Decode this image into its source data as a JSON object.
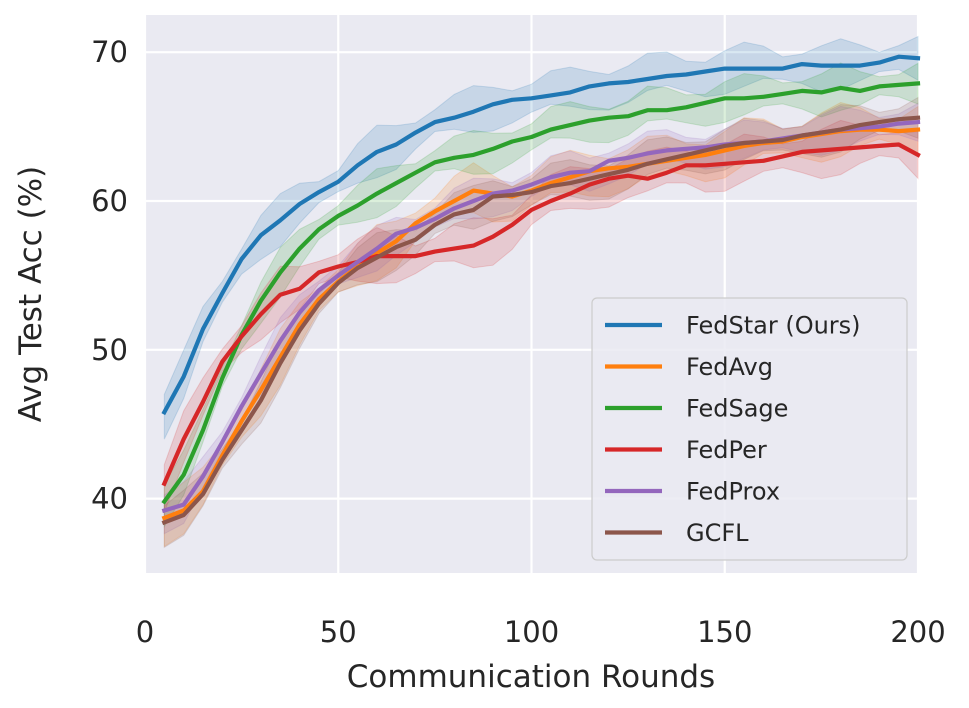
{
  "chart_data": {
    "type": "line",
    "title": "",
    "xlabel": "Communication Rounds",
    "ylabel": "Avg Test Acc (%)",
    "xlim": [
      0,
      200
    ],
    "ylim": [
      35,
      72.5
    ],
    "xticks": [
      0,
      50,
      100,
      150,
      200
    ],
    "yticks": [
      40,
      50,
      60,
      70
    ],
    "xtick_labels": [
      "0",
      "50",
      "100",
      "150",
      "200"
    ],
    "ytick_labels": [
      "40",
      "50",
      "60",
      "70"
    ],
    "grid": true,
    "legend_position": "lower-right",
    "x": [
      5,
      10,
      15,
      20,
      25,
      30,
      35,
      40,
      45,
      50,
      55,
      60,
      65,
      70,
      75,
      80,
      85,
      90,
      95,
      100,
      105,
      110,
      115,
      120,
      125,
      130,
      135,
      140,
      145,
      150,
      155,
      160,
      165,
      170,
      175,
      180,
      185,
      190,
      195,
      200
    ],
    "series": [
      {
        "name": "FedStar (Ours)",
        "color": "#1f77b4",
        "band": 1.5,
        "values": [
          45.8,
          48.2,
          51.4,
          53.8,
          56.1,
          57.7,
          58.7,
          59.8,
          60.6,
          61.3,
          62.4,
          63.3,
          63.8,
          64.6,
          65.3,
          65.6,
          66.0,
          66.5,
          66.8,
          66.9,
          67.1,
          67.3,
          67.7,
          67.9,
          68.0,
          68.2,
          68.4,
          68.5,
          68.7,
          68.9,
          68.9,
          68.9,
          68.9,
          69.2,
          69.1,
          69.1,
          69.1,
          69.3,
          69.7,
          69.6
        ]
      },
      {
        "name": "FedAvg",
        "color": "#ff7f0e",
        "band": 1.6,
        "values": [
          38.7,
          39.2,
          40.5,
          42.9,
          45.2,
          47.3,
          49.5,
          51.7,
          53.4,
          54.6,
          55.6,
          56.5,
          57.3,
          58.5,
          59.3,
          60.0,
          60.7,
          60.5,
          60.3,
          60.7,
          61.2,
          61.6,
          62.0,
          62.2,
          62.3,
          62.5,
          62.7,
          62.9,
          63.1,
          63.4,
          63.7,
          63.9,
          64.0,
          64.3,
          64.5,
          64.7,
          64.8,
          64.8,
          64.7,
          64.8
        ]
      },
      {
        "name": "FedSage",
        "color": "#2ca02c",
        "band": 1.4,
        "values": [
          39.8,
          41.6,
          44.6,
          48.1,
          51.0,
          53.3,
          55.2,
          56.8,
          58.1,
          59.0,
          59.7,
          60.5,
          61.2,
          61.9,
          62.6,
          62.9,
          63.1,
          63.5,
          64.0,
          64.3,
          64.8,
          65.1,
          65.4,
          65.6,
          65.7,
          66.1,
          66.1,
          66.3,
          66.6,
          66.9,
          66.9,
          67.0,
          67.2,
          67.4,
          67.3,
          67.6,
          67.4,
          67.7,
          67.8,
          67.9
        ]
      },
      {
        "name": "FedPer",
        "color": "#d62728",
        "band": 1.6,
        "values": [
          41.0,
          44.0,
          46.5,
          49.2,
          50.9,
          52.4,
          53.7,
          54.1,
          55.2,
          55.6,
          55.9,
          56.3,
          56.3,
          56.3,
          56.6,
          56.8,
          57.0,
          57.6,
          58.4,
          59.4,
          60.0,
          60.5,
          61.1,
          61.5,
          61.7,
          61.5,
          61.9,
          62.4,
          62.4,
          62.5,
          62.6,
          62.7,
          63.0,
          63.3,
          63.4,
          63.5,
          63.6,
          63.7,
          63.8,
          63.1
        ]
      },
      {
        "name": "FedProx",
        "color": "#9467bd",
        "band": 1.3,
        "values": [
          39.2,
          39.6,
          41.5,
          43.8,
          46.2,
          48.4,
          50.6,
          52.5,
          54.0,
          55.0,
          55.9,
          56.8,
          57.8,
          58.2,
          58.8,
          59.5,
          60.0,
          60.5,
          60.7,
          61.1,
          61.6,
          61.9,
          62.0,
          62.7,
          62.9,
          63.2,
          63.4,
          63.5,
          63.6,
          63.8,
          63.9,
          64.0,
          64.2,
          64.4,
          64.6,
          64.8,
          64.9,
          65.0,
          65.2,
          65.3
        ]
      },
      {
        "name": "GCFL",
        "color": "#8c564b",
        "band": 1.4,
        "values": [
          38.4,
          38.9,
          40.3,
          42.6,
          44.6,
          46.6,
          49.1,
          51.3,
          53.1,
          54.5,
          55.5,
          56.2,
          56.9,
          57.4,
          58.4,
          59.1,
          59.4,
          60.3,
          60.4,
          60.6,
          61.0,
          61.2,
          61.5,
          61.8,
          62.1,
          62.5,
          62.8,
          63.1,
          63.4,
          63.7,
          63.9,
          64.0,
          64.1,
          64.4,
          64.6,
          64.8,
          65.1,
          65.3,
          65.5,
          65.6
        ]
      }
    ]
  }
}
